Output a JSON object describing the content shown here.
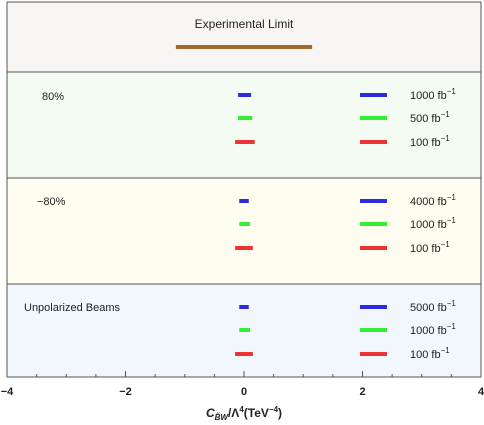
{
  "chart_data": {
    "type": "interval",
    "xlabel": "C",
    "xlabel_sub": "B̃W",
    "xlabel_tail": "/Λ",
    "xlabel_sup": "4",
    "xlabel_unit": "(TeV",
    "xlabel_unit_sup": "−4",
    "xlabel_unit_close": ")",
    "xlim": [
      -4,
      4
    ],
    "xticks": [
      -4,
      -2,
      0,
      2,
      4
    ],
    "xtick_labels": [
      "−4",
      "−2",
      "0",
      "2",
      "4"
    ],
    "colors": {
      "limit": "#a0682c",
      "blue": "#2a2ae0",
      "green": "#33ee33",
      "red": "#ee3333"
    },
    "limit": {
      "label": "Experimental Limit",
      "range": [
        -1.15,
        1.15
      ]
    },
    "panels": [
      {
        "label": "80%",
        "bg": "#f4fbf3",
        "rows": [
          {
            "color": "blue",
            "range": [
              -0.1,
              0.12
            ],
            "lumi": "1000 fb",
            "sup": "−1"
          },
          {
            "color": "green",
            "range": [
              -0.1,
              0.14
            ],
            "lumi": "500 fb",
            "sup": "−1"
          },
          {
            "color": "red",
            "range": [
              -0.15,
              0.18
            ],
            "lumi": "100 fb",
            "sup": "−1"
          }
        ]
      },
      {
        "label": "−80%",
        "bg": "#fefdf0",
        "rows": [
          {
            "color": "blue",
            "range": [
              -0.08,
              0.08
            ],
            "lumi": "4000 fb",
            "sup": "−1"
          },
          {
            "color": "green",
            "range": [
              -0.08,
              0.1
            ],
            "lumi": "1000 fb",
            "sup": "−1"
          },
          {
            "color": "red",
            "range": [
              -0.15,
              0.15
            ],
            "lumi": "100 fb",
            "sup": "−1"
          }
        ]
      },
      {
        "label": "Unpolarized Beams",
        "bg": "#f2f7fd",
        "rows": [
          {
            "color": "blue",
            "range": [
              -0.08,
              0.08
            ],
            "lumi": "5000 fb",
            "sup": "−1"
          },
          {
            "color": "green",
            "range": [
              -0.08,
              0.1
            ],
            "lumi": "1000 fb",
            "sup": "−1"
          },
          {
            "color": "red",
            "range": [
              -0.15,
              0.15
            ],
            "lumi": "100 fb",
            "sup": "−1"
          }
        ]
      }
    ]
  }
}
